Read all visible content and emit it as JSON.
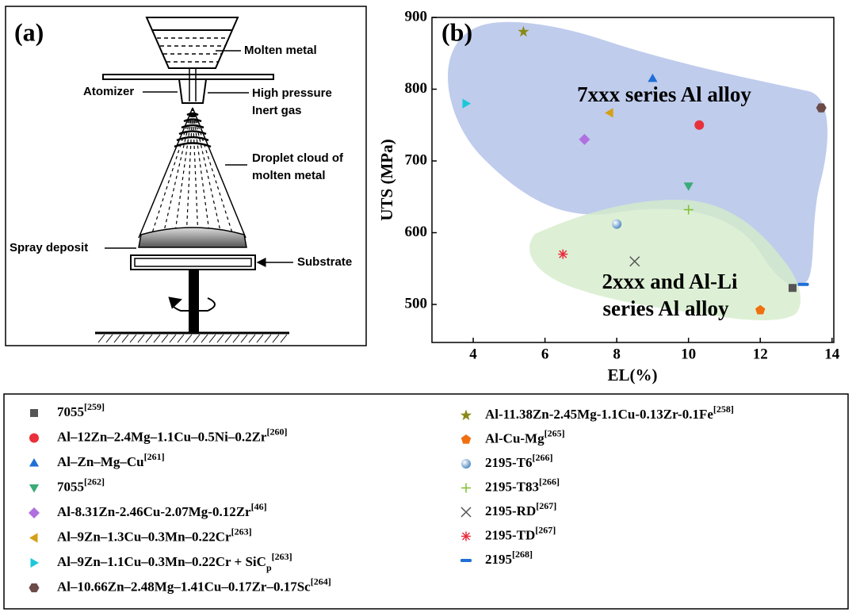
{
  "diagram": {
    "panel_label": "(a)",
    "labels": [
      "Molten metal",
      "Atomizer",
      "High pressure",
      "Inert gas",
      "Droplet cloud of",
      "molten metal",
      "Spray deposit",
      "Substrate"
    ]
  },
  "chart_data": {
    "type": "scatter",
    "panel_label": "(b)",
    "x_label": "EL(%)",
    "y_label": "UTS (MPa)",
    "annotations": [
      "7xxx series Al alloy",
      "2xxx and Al-Li",
      "series Al alloy"
    ],
    "xlim": [
      2.85,
      14.05
    ],
    "xticks": [
      4,
      6,
      8,
      10,
      12,
      14
    ],
    "ylim": [
      447,
      900
    ],
    "yticks": [
      500,
      600,
      700,
      800,
      900
    ],
    "series": [
      {
        "name": "7055",
        "ref": "[259]",
        "color": "#555555",
        "marker": "square",
        "x": [
          12.9
        ],
        "values": [
          523
        ]
      },
      {
        "name": "Al–12Zn–2.4Mg–1.1Cu–0.5Ni–0.2Zr",
        "ref": "[260]",
        "color": "#e8313a",
        "marker": "circle",
        "x": [
          10.3
        ],
        "values": [
          750
        ]
      },
      {
        "name": "Al–Zn–Mg–Cu",
        "ref": "[261]",
        "color": "#1f6fd6",
        "marker": "triangle-up",
        "x": [
          9
        ],
        "values": [
          815
        ]
      },
      {
        "name": "7055",
        "ref": "[262]",
        "color": "#3aab78",
        "marker": "triangle-down",
        "x": [
          10
        ],
        "values": [
          665
        ]
      },
      {
        "name": "Al-8.31Zn-2.46Cu-2.07Mg-0.12Zr",
        "ref": "[46]",
        "color": "#b070e0",
        "marker": "diamond",
        "x": [
          7.1
        ],
        "values": [
          730
        ]
      },
      {
        "name": "Al–9Zn–1.3Cu–0.3Mn–0.22Cr",
        "ref": "[263]",
        "color": "#d4a017",
        "marker": "triangle-left",
        "x": [
          7.8
        ],
        "values": [
          767
        ]
      },
      {
        "name": "Al–9Zn–1.1Cu–0.3Mn–0.22Cr + SiC",
        "sub": "p",
        "ref": "[263]",
        "color": "#1cc8d8",
        "marker": "triangle-right",
        "x": [
          3.8
        ],
        "values": [
          780
        ]
      },
      {
        "name": "Al–10.66Zn–2.48Mg–1.41Cu–0.17Zr–0.17Sc",
        "ref": "[264]",
        "color": "#6b4a48",
        "marker": "hexagon",
        "x": [
          13.7
        ],
        "values": [
          774
        ]
      },
      {
        "name": "Al-11.38Zn-2.45Mg-1.1Cu-0.13Zr-0.1Fe",
        "ref": "[258]",
        "color": "#8a8a18",
        "marker": "star",
        "x": [
          5.4
        ],
        "values": [
          880
        ]
      },
      {
        "name": "Al-Cu-Mg",
        "ref": "[265]",
        "color": "#f07010",
        "marker": "pentagon",
        "x": [
          12
        ],
        "values": [
          492
        ]
      },
      {
        "name": "2195-T6",
        "ref": "[266]",
        "color": "#6aa0d0",
        "marker": "sphere",
        "x": [
          8
        ],
        "values": [
          612
        ]
      },
      {
        "name": "2195-T83",
        "ref": "[266]",
        "color": "#80c030",
        "marker": "plus",
        "x": [
          10
        ],
        "values": [
          632
        ]
      },
      {
        "name": "2195-RD",
        "ref": "[267]",
        "color": "#555555",
        "marker": "cross",
        "x": [
          8.5
        ],
        "values": [
          560
        ]
      },
      {
        "name": "2195-TD",
        "ref": "[267]",
        "color": "#e83040",
        "marker": "asterisk",
        "x": [
          6.5
        ],
        "values": [
          570
        ]
      },
      {
        "name": "2195",
        "ref": "[268]",
        "color": "#1f6fd6",
        "marker": "dash",
        "x": [
          13.2
        ],
        "values": [
          528
        ]
      }
    ]
  }
}
